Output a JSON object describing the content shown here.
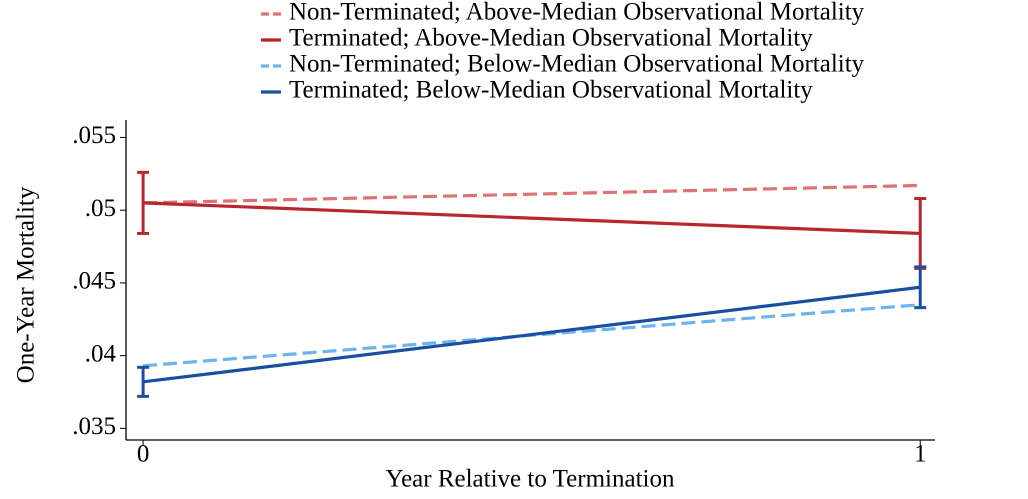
{
  "chart_data": {
    "type": "line",
    "x": [
      0,
      1
    ],
    "xlim": [
      -0.022,
      1.019
    ],
    "xticks": [
      0,
      1
    ],
    "ylim": [
      0.0342,
      0.0562
    ],
    "yticks": [
      {
        "value": 0.035,
        "label": ".035"
      },
      {
        "value": 0.04,
        "label": ".04"
      },
      {
        "value": 0.045,
        "label": ".045"
      },
      {
        "value": 0.05,
        "label": ".05"
      },
      {
        "value": 0.055,
        "label": ".055"
      }
    ],
    "xlabel": "Year Relative to Termination",
    "ylabel": "One-Year Mortality",
    "series": [
      {
        "name": "Non-Terminated; Above-Median Observational Mortality",
        "color": "#e07272",
        "dashed": true,
        "values": [
          0.0505,
          0.0517
        ]
      },
      {
        "name": "Terminated; Above-Median Observational Mortality",
        "color": "#b7282e",
        "dashed": false,
        "values": [
          0.0505,
          0.0484
        ],
        "errors": [
          0.0021,
          0.0024
        ]
      },
      {
        "name": "Non-Terminated; Below-Median Observational Mortality",
        "color": "#6cb4ee",
        "dashed": true,
        "values": [
          0.0393,
          0.0435
        ]
      },
      {
        "name": "Terminated; Below-Median Observational Mortality",
        "color": "#1a4ea0",
        "dashed": false,
        "values": [
          0.0382,
          0.0447
        ],
        "errors": [
          0.001,
          0.0014
        ]
      }
    ]
  }
}
